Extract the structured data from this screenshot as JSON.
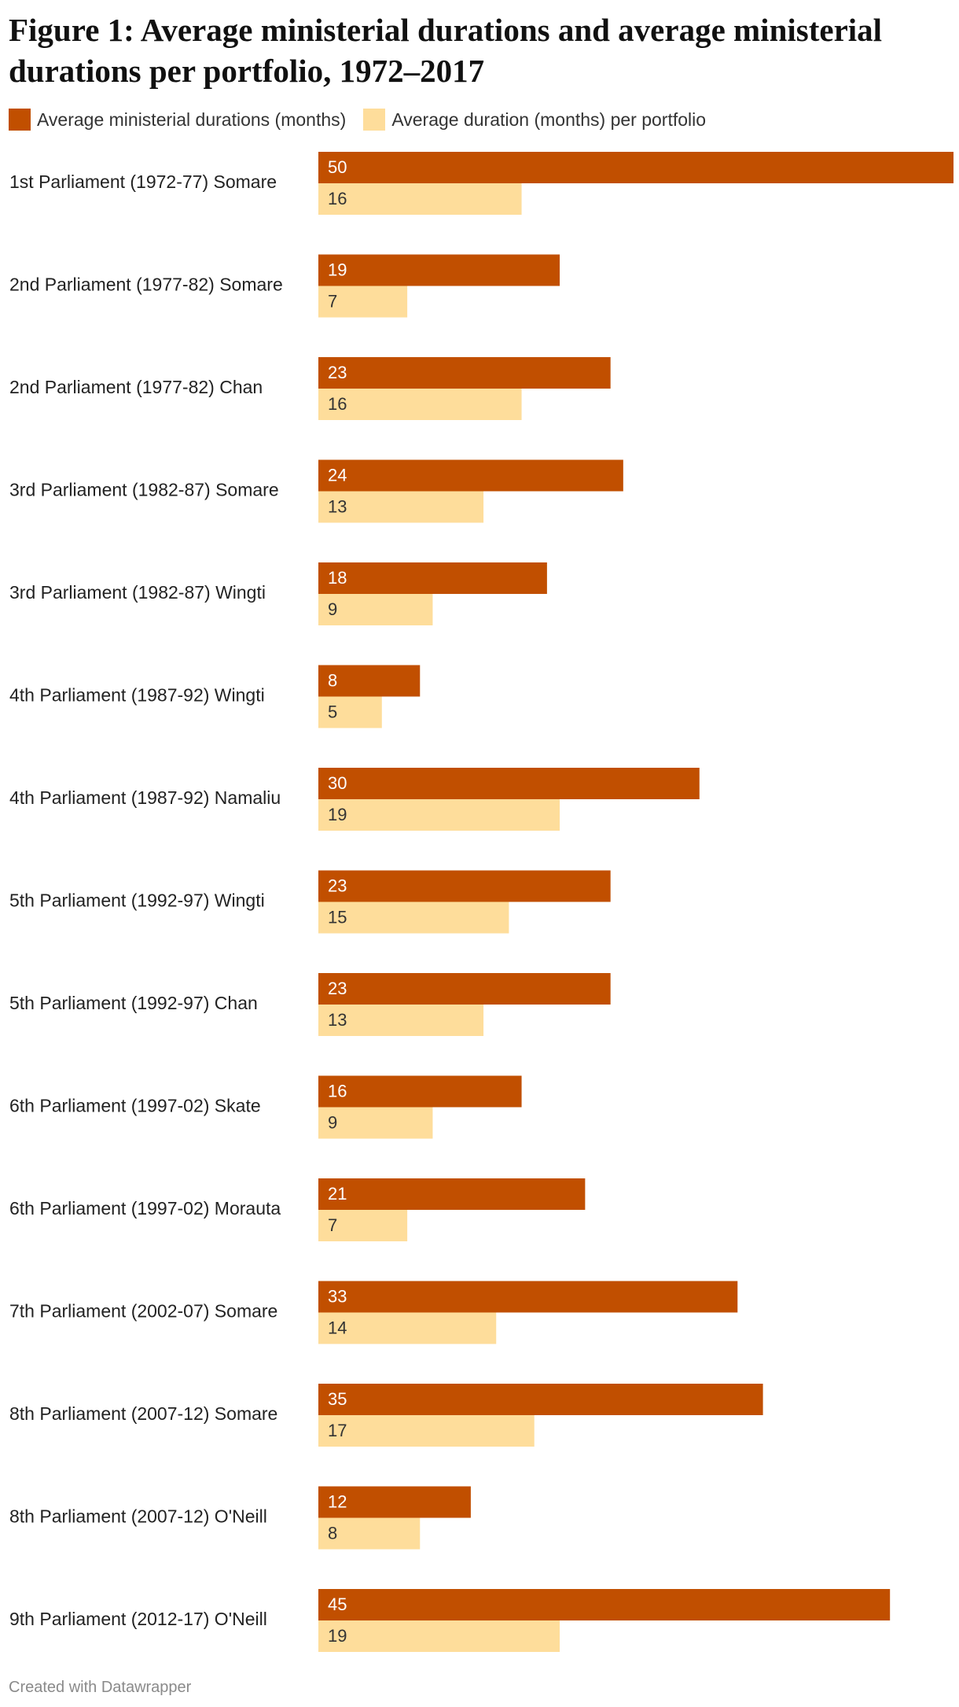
{
  "chart_data": {
    "type": "bar",
    "orientation": "horizontal",
    "title": "Figure 1: Average ministerial durations and average ministerial durations per portfolio, 1972–2017",
    "categories": [
      "1st Parliament (1972-77) Somare",
      "2nd Parliament (1977-82) Somare",
      "2nd Parliament (1977-82) Chan",
      "3rd Parliament (1982-87) Somare",
      "3rd Parliament (1982-87) Wingti",
      "4th Parliament (1987-92) Wingti",
      "4th Parliament (1987-92) Namaliu",
      "5th Parliament (1992-97) Wingti",
      "5th Parliament (1992-97) Chan",
      "6th Parliament (1997-02) Skate",
      "6th Parliament (1997-02) Morauta",
      "7th Parliament (2002-07) Somare",
      "8th Parliament (2007-12) Somare",
      "8th Parliament (2007-12) O'Neill",
      "9th Parliament (2012-17) O'Neill"
    ],
    "series": [
      {
        "name": "Average ministerial durations (months)",
        "color": "#c14f00",
        "label_color": "#ffffff",
        "values": [
          50,
          19,
          23,
          24,
          18,
          8,
          30,
          23,
          23,
          16,
          21,
          33,
          35,
          12,
          45
        ]
      },
      {
        "name": "Average duration (months) per portfolio",
        "color": "#fedd9b",
        "label_color": "#333333",
        "values": [
          16,
          7,
          16,
          13,
          9,
          5,
          19,
          15,
          13,
          9,
          7,
          14,
          17,
          8,
          19
        ]
      }
    ],
    "xlim": [
      0,
      50
    ],
    "grid": false,
    "legend": "top-left"
  },
  "footer": {
    "credit": "Created with Datawrapper"
  }
}
